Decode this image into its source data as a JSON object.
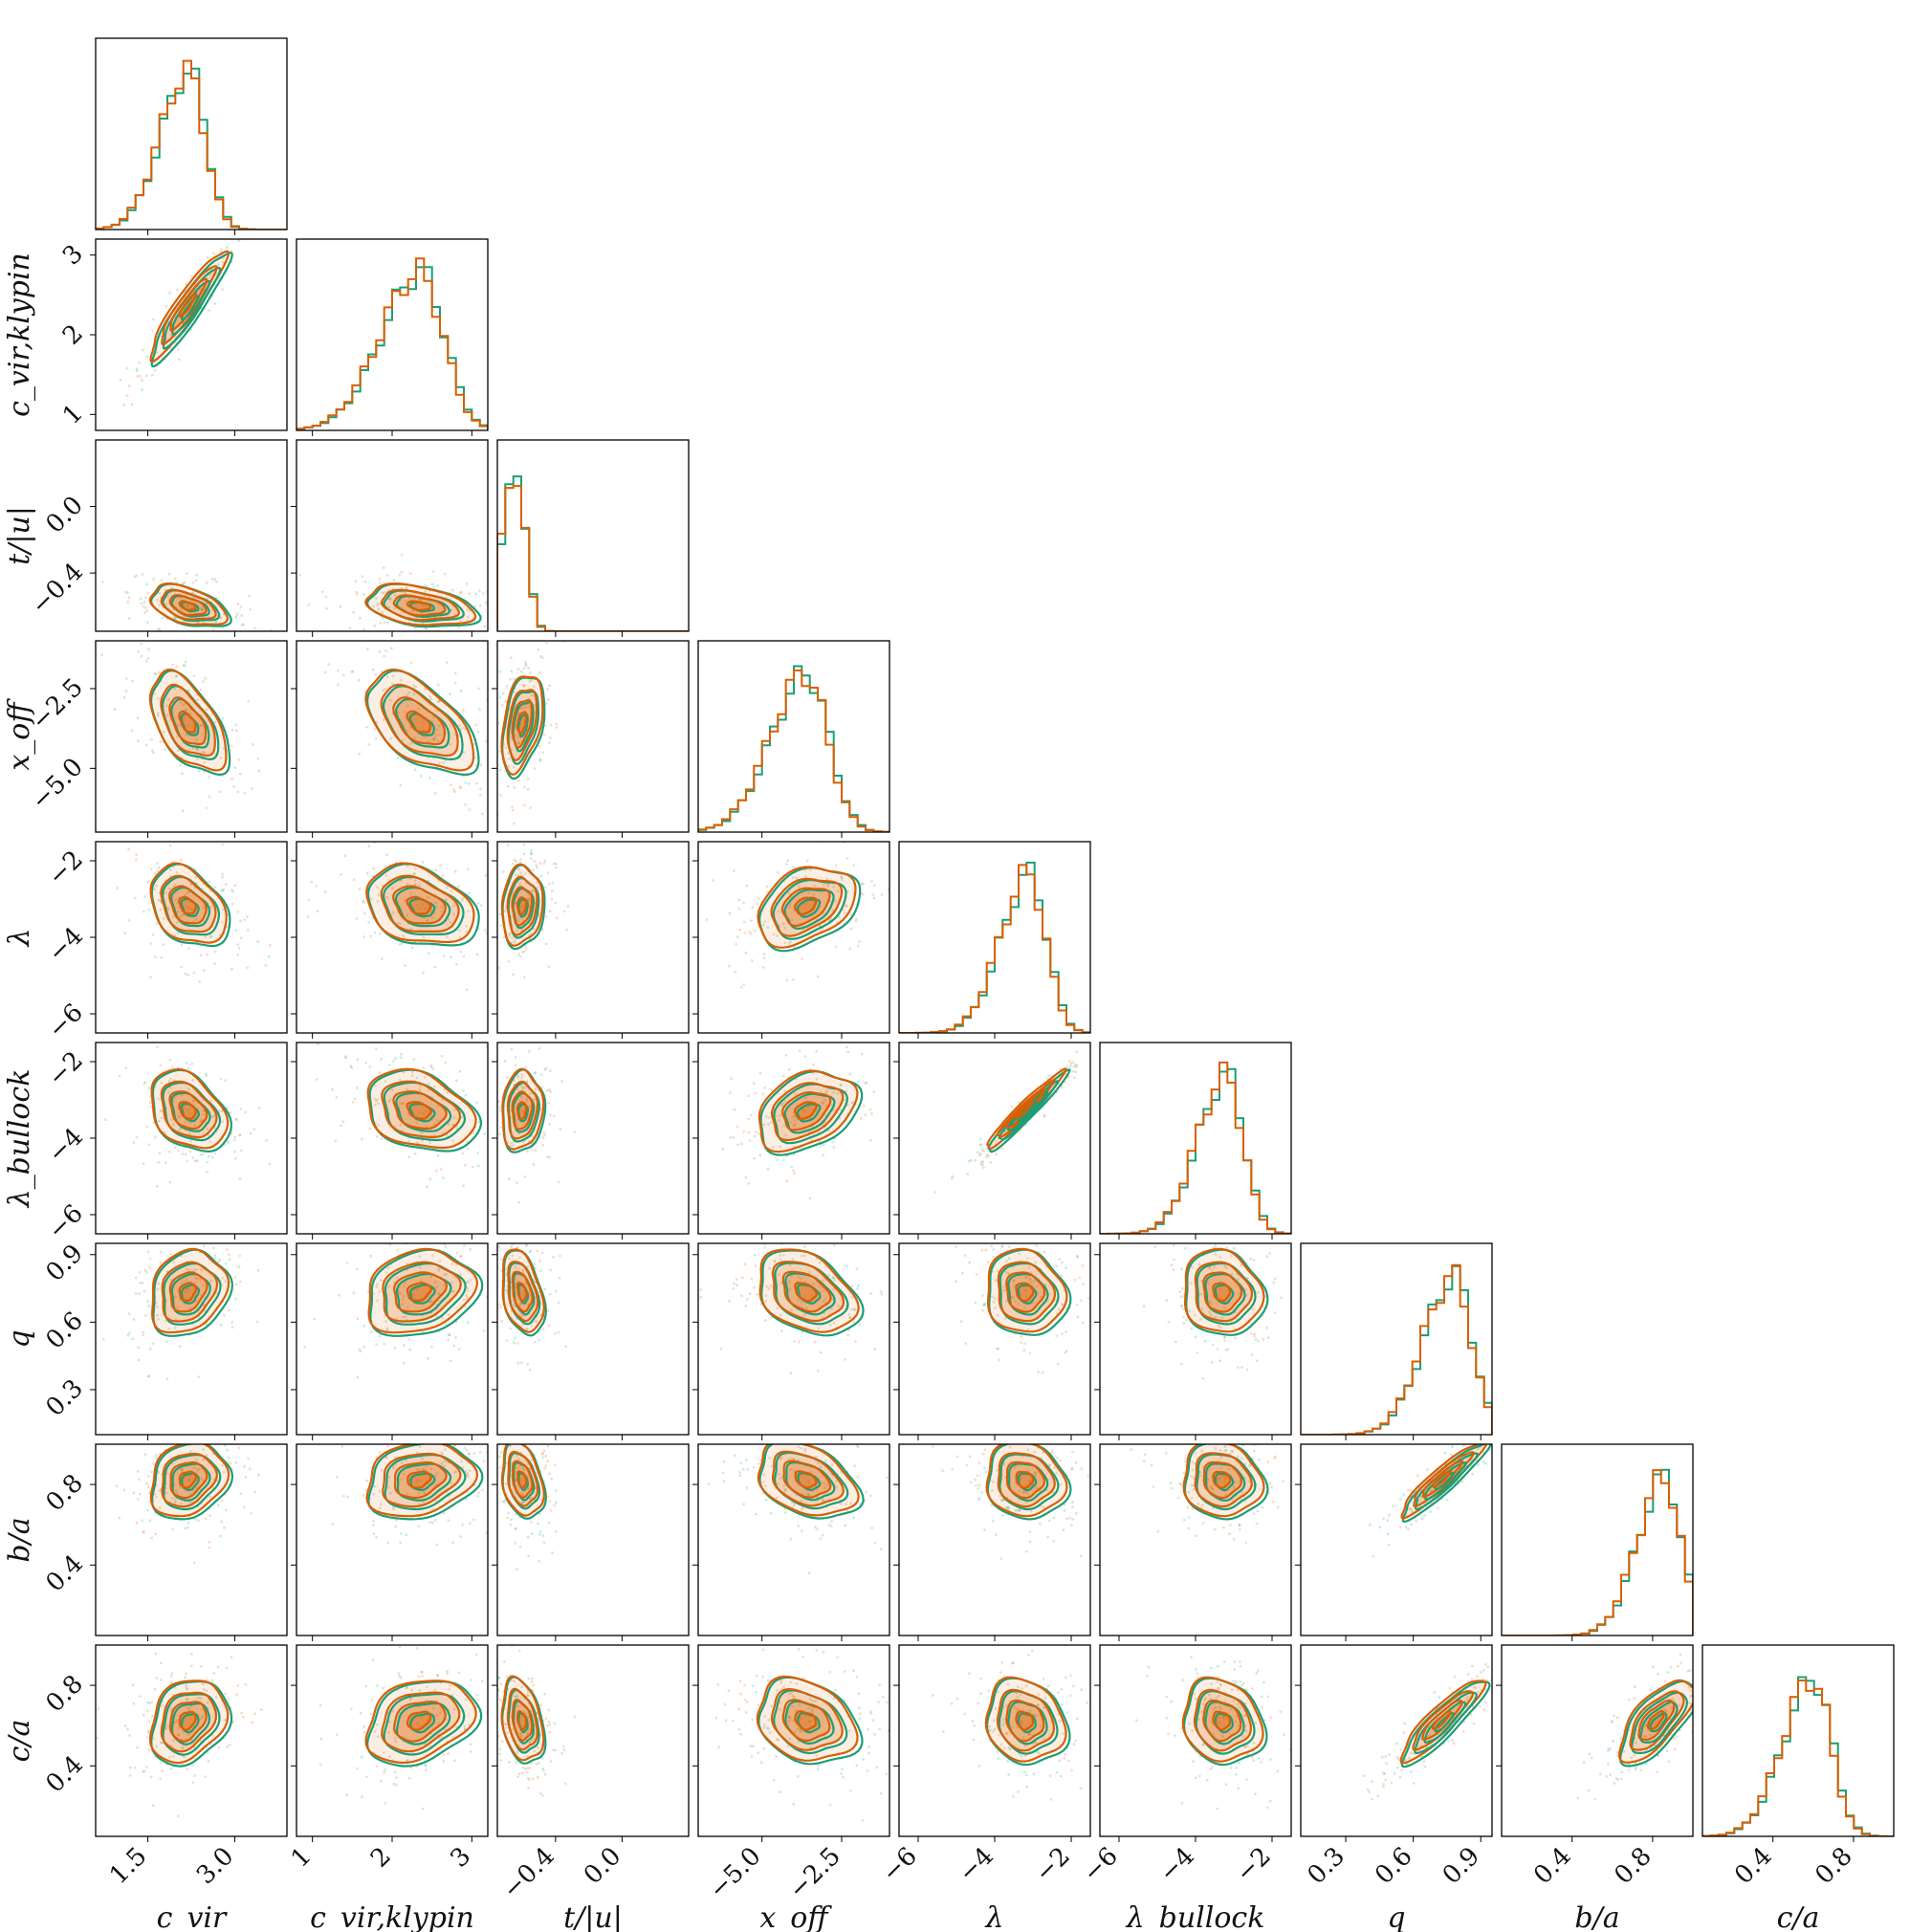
{
  "chart_data": {
    "type": "corner",
    "series": [
      {
        "name": "",
        "color": "#d95f02"
      },
      {
        "name": "",
        "color": "#1b9e77"
      }
    ],
    "parameters": [
      {
        "label": "c_vir",
        "range": [
          0.6,
          3.9
        ],
        "ticks": [
          1.5,
          3.0
        ],
        "tick_labels": [
          "1.5",
          "3.0"
        ],
        "mean": 2.2,
        "sd": 0.32,
        "hist_peak": 2.2
      },
      {
        "label": "c_vir,klypin",
        "range": [
          0.8,
          3.2
        ],
        "ticks": [
          1,
          2,
          3
        ],
        "tick_labels": [
          "1",
          "2",
          "3"
        ],
        "mean": 2.35,
        "sd": 0.33,
        "hist_peak": 2.35
      },
      {
        "label": "t/|u|",
        "range": [
          -0.75,
          0.4
        ],
        "ticks": [
          -0.4,
          0.0
        ],
        "tick_labels": [
          "−0.4",
          "0.0"
        ],
        "mean": -0.6,
        "sd": 0.06,
        "hist_peak": -0.63
      },
      {
        "label": "x_off",
        "range": [
          -7.0,
          -1.0
        ],
        "ticks": [
          -5.0,
          -2.5
        ],
        "tick_labels": [
          "−5.0",
          "−2.5"
        ],
        "mean": -3.6,
        "sd": 0.75,
        "hist_peak": -3.6
      },
      {
        "label": "λ",
        "range": [
          -6.5,
          -1.5
        ],
        "ticks": [
          -6,
          -4,
          -2
        ],
        "tick_labels": [
          "−6",
          "−4",
          "−2"
        ],
        "mean": -3.2,
        "sd": 0.5,
        "hist_peak": -3.1
      },
      {
        "label": "λ_bullock",
        "range": [
          -6.5,
          -1.5
        ],
        "ticks": [
          -6,
          -4,
          -2
        ],
        "tick_labels": [
          "−6",
          "−4",
          "−2"
        ],
        "mean": -3.3,
        "sd": 0.5,
        "hist_peak": -3.2
      },
      {
        "label": "q",
        "range": [
          0.1,
          0.95
        ],
        "ticks": [
          0.3,
          0.6,
          0.9
        ],
        "tick_labels": [
          "0.3",
          "0.6",
          "0.9"
        ],
        "mean": 0.73,
        "sd": 0.09,
        "hist_peak": 0.78
      },
      {
        "label": "b/a",
        "range": [
          0.05,
          1.0
        ],
        "ticks": [
          0.4,
          0.8
        ],
        "tick_labels": [
          "0.4",
          "0.8"
        ],
        "mean": 0.82,
        "sd": 0.09,
        "hist_peak": 0.86
      },
      {
        "label": "c/a",
        "range": [
          0.05,
          1.0
        ],
        "ticks": [
          0.4,
          0.8
        ],
        "tick_labels": [
          "0.4",
          "0.8"
        ],
        "mean": 0.62,
        "sd": 0.1,
        "hist_peak": 0.6
      }
    ],
    "correlations": [
      [
        0,
        1,
        0.93
      ],
      [
        0,
        2,
        -0.45
      ],
      [
        0,
        3,
        -0.55
      ],
      [
        0,
        4,
        -0.35
      ],
      [
        0,
        5,
        -0.35
      ],
      [
        0,
        6,
        0.2
      ],
      [
        0,
        7,
        0.2
      ],
      [
        0,
        8,
        0.25
      ],
      [
        1,
        2,
        -0.35
      ],
      [
        1,
        3,
        -0.55
      ],
      [
        1,
        4,
        -0.3
      ],
      [
        1,
        5,
        -0.3
      ],
      [
        1,
        6,
        0.2
      ],
      [
        1,
        7,
        0.2
      ],
      [
        1,
        8,
        0.3
      ],
      [
        2,
        3,
        0.4
      ],
      [
        2,
        4,
        0.1
      ],
      [
        2,
        5,
        0.1
      ],
      [
        2,
        6,
        -0.35
      ],
      [
        2,
        7,
        -0.3
      ],
      [
        2,
        8,
        -0.3
      ],
      [
        3,
        4,
        0.35
      ],
      [
        3,
        5,
        0.35
      ],
      [
        3,
        6,
        -0.35
      ],
      [
        3,
        7,
        -0.35
      ],
      [
        3,
        8,
        -0.25
      ],
      [
        4,
        5,
        0.97
      ],
      [
        4,
        6,
        -0.1
      ],
      [
        4,
        7,
        -0.1
      ],
      [
        4,
        8,
        -0.15
      ],
      [
        5,
        6,
        -0.1
      ],
      [
        5,
        7,
        -0.1
      ],
      [
        5,
        8,
        -0.15
      ],
      [
        6,
        7,
        0.93
      ],
      [
        6,
        8,
        0.9
      ],
      [
        7,
        8,
        0.7
      ]
    ]
  }
}
